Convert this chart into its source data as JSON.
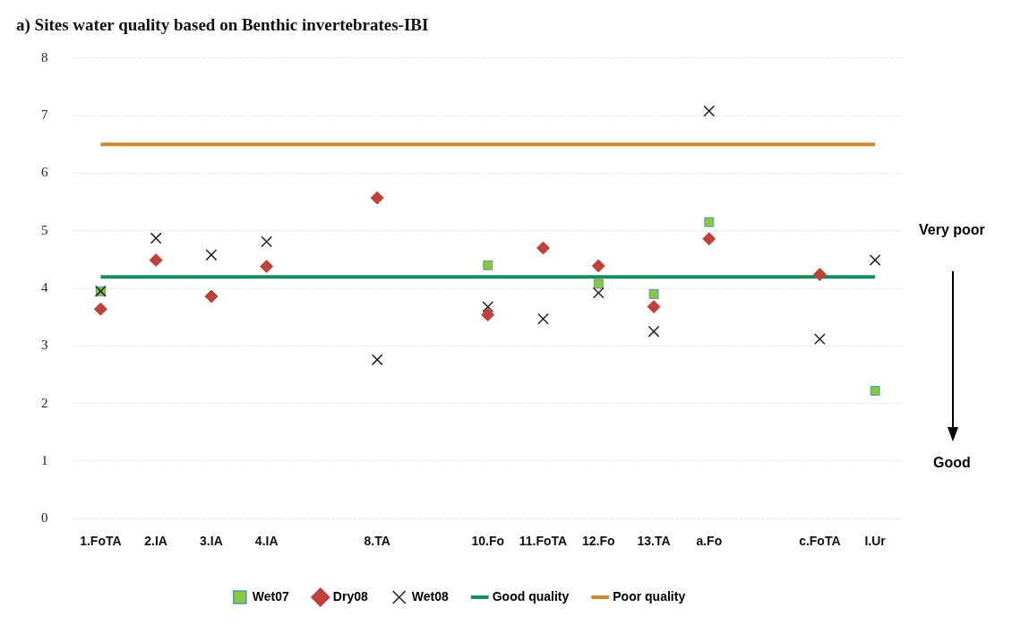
{
  "chart_data": {
    "type": "scatter",
    "title": "a) Sites water quality based on Benthic invertebrates-IBI",
    "categories": [
      "1.FoTA",
      "2.IA",
      "3.IA",
      "4.IA",
      null,
      "8.TA",
      null,
      "10.Fo",
      "11.FoTA",
      "12.Fo",
      "13.TA",
      "a.Fo",
      null,
      "c.FoTA",
      "I.Ur"
    ],
    "series": [
      {
        "name": "Wet07",
        "marker": "square",
        "color": "#8dc63f",
        "values": [
          3.95,
          null,
          null,
          null,
          null,
          null,
          null,
          4.4,
          null,
          4.08,
          3.9,
          5.15,
          null,
          null,
          2.22
        ]
      },
      {
        "name": "Dry08",
        "marker": "diamond",
        "color": "#c0403a",
        "values": [
          3.64,
          4.49,
          3.86,
          4.38,
          null,
          5.57,
          null,
          3.54,
          4.7,
          4.39,
          3.68,
          4.86,
          null,
          4.24,
          null
        ]
      },
      {
        "name": "Wet08",
        "marker": "cross",
        "color": "#222222",
        "values": [
          3.95,
          4.87,
          4.58,
          4.81,
          null,
          2.76,
          null,
          3.68,
          3.47,
          3.92,
          3.25,
          7.08,
          null,
          3.12,
          4.49
        ]
      },
      {
        "name": "Good quality",
        "type": "line",
        "marker": "none",
        "color": "#1a8a5a",
        "values": [
          4.2,
          4.2,
          4.2,
          4.2,
          4.2,
          4.2,
          4.2,
          4.2,
          4.2,
          4.2,
          4.2,
          4.2,
          4.2,
          4.2,
          4.2
        ]
      },
      {
        "name": "Poor quality",
        "type": "line",
        "marker": "none",
        "color": "#c8882a",
        "values": [
          6.5,
          6.5,
          6.5,
          6.5,
          6.5,
          6.5,
          6.5,
          6.5,
          6.5,
          6.5,
          6.5,
          6.5,
          6.5,
          6.5,
          6.5
        ]
      }
    ],
    "ylim": [
      0,
      8
    ],
    "yticks": [
      0,
      1,
      2,
      3,
      4,
      5,
      6,
      7,
      8
    ],
    "grid": "y",
    "legend": "bottom",
    "annotations": [
      "Very poor",
      "Good"
    ]
  }
}
